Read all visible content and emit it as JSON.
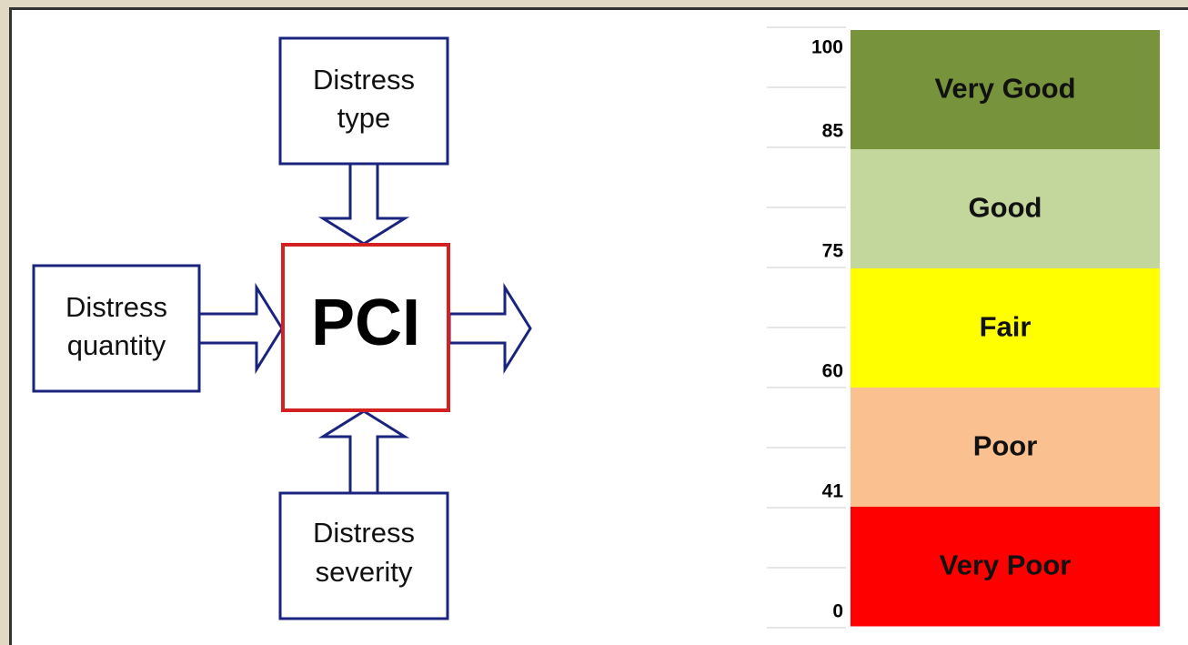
{
  "nodes": [
    {
      "lines": [
        "Distress",
        "type"
      ]
    },
    {
      "lines": [
        "Distress",
        "quantity"
      ]
    },
    {
      "lines": [
        "PCI"
      ]
    },
    {
      "lines": [
        "Distress",
        "severity"
      ]
    }
  ],
  "scale": {
    "ticks": [
      "100",
      "85",
      "75",
      "60",
      "41",
      "0"
    ],
    "bands": [
      {
        "label": "Very Good",
        "color": "#77933c"
      },
      {
        "label": "Good",
        "color": "#c3d69b"
      },
      {
        "label": "Fair",
        "color": "#ffff00"
      },
      {
        "label": "Poor",
        "color": "#fac090"
      },
      {
        "label": "Very Poor",
        "color": "#ff0000"
      }
    ]
  }
}
